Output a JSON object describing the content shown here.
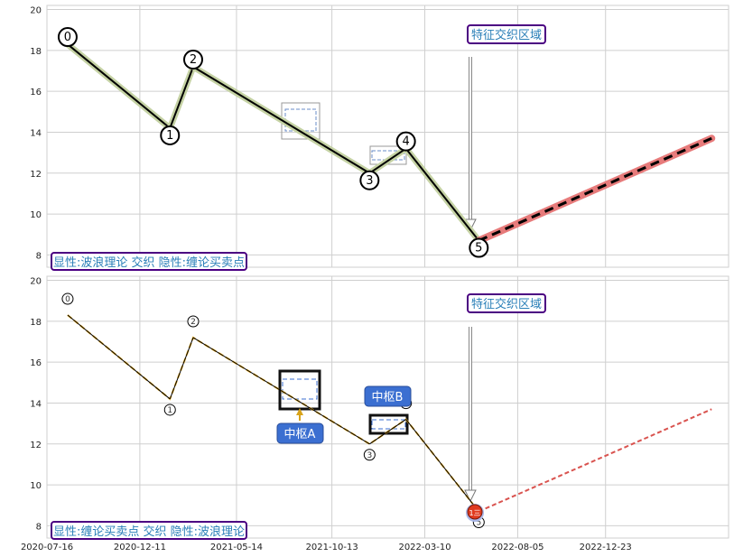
{
  "chart_data": [
    {
      "type": "line",
      "title": "",
      "ylim": [
        7.4,
        20.2
      ],
      "y_ticks": [
        8,
        10,
        12,
        14,
        16,
        18,
        20
      ],
      "x_range": [
        "2020-07-16",
        "2023-07-07"
      ],
      "x_ticks": [
        "2020-07-16",
        "2020-12-11",
        "2021-05-14",
        "2021-10-13",
        "2022-03-10",
        "2022-08-05",
        "2022-12-23"
      ],
      "grid": true,
      "price_color": "#4b0082",
      "annotations": {
        "feature_box": "特征交织区域",
        "legend_box": "显性:波浪理论 交织 隐性:缠论买卖点"
      },
      "wave_points": [
        {
          "label": "0",
          "date": "2020-08-18",
          "value": 18.3
        },
        {
          "label": "1",
          "date": "2021-01-28",
          "value": 14.2
        },
        {
          "label": "2",
          "date": "2021-03-06",
          "value": 17.2
        },
        {
          "label": "3",
          "date": "2021-12-12",
          "value": 12.0
        },
        {
          "label": "4",
          "date": "2022-02-08",
          "value": 13.2
        },
        {
          "label": "5",
          "date": "2022-06-04",
          "value": 8.7
        }
      ],
      "forecast": {
        "from": {
          "date": "2022-06-04",
          "value": 8.7
        },
        "to": {
          "date": "2023-06-10",
          "value": 13.7
        }
      }
    },
    {
      "type": "line",
      "title": "",
      "ylim": [
        7.4,
        20.2
      ],
      "y_ticks": [
        8,
        10,
        12,
        14,
        16,
        18,
        20
      ],
      "x_range": [
        "2020-07-16",
        "2023-07-07"
      ],
      "x_ticks": [
        "2020-07-16",
        "2020-12-11",
        "2021-05-14",
        "2021-10-13",
        "2022-03-10",
        "2022-08-05",
        "2022-12-23"
      ],
      "grid": true,
      "price_color": "#f0b429",
      "annotations": {
        "feature_box": "特征交织区域",
        "legend_box": "显性:缠论买卖点 交织 隐性:波浪理论",
        "pivot_a": "中枢A",
        "pivot_b": "中枢B",
        "buy_point": "1三"
      },
      "wave_points": [
        {
          "label": "0",
          "date": "2020-08-18",
          "value": 18.3
        },
        {
          "label": "1",
          "date": "2021-01-28",
          "value": 14.2
        },
        {
          "label": "2",
          "date": "2021-03-06",
          "value": 17.2
        },
        {
          "label": "3",
          "date": "2021-12-12",
          "value": 12.0
        },
        {
          "label": "4",
          "date": "2022-02-08",
          "value": 13.2
        },
        {
          "label": "5",
          "date": "2022-06-04",
          "value": 8.7
        }
      ],
      "forecast": {
        "from": {
          "date": "2022-06-04",
          "value": 8.7
        },
        "to": {
          "date": "2023-06-10",
          "value": 13.7
        }
      }
    }
  ]
}
